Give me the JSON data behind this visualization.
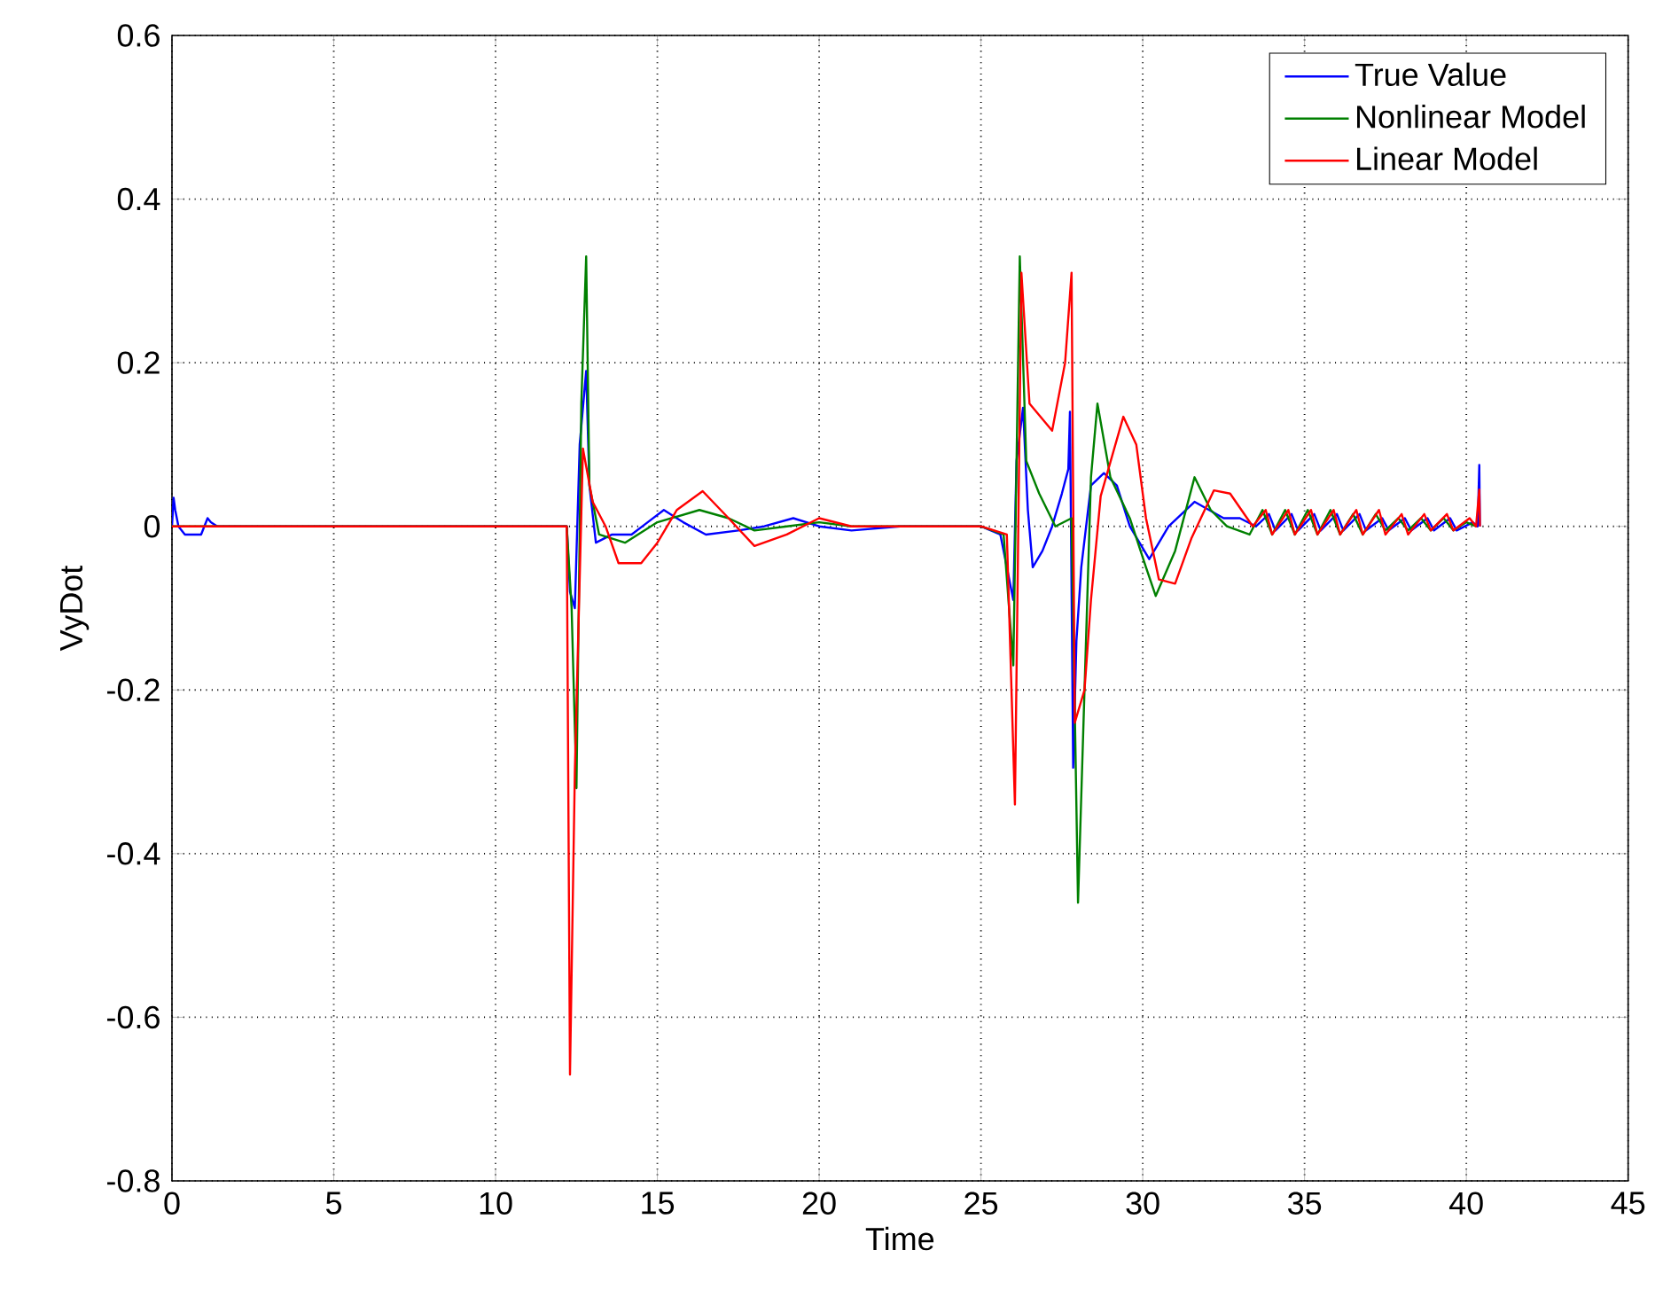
{
  "chart_data": {
    "type": "line",
    "xlabel": "Time",
    "ylabel": "VyDot",
    "xlim": [
      0,
      45
    ],
    "ylim": [
      -0.8,
      0.6
    ],
    "xticks": [
      0,
      5,
      10,
      15,
      20,
      25,
      30,
      35,
      40,
      45
    ],
    "yticks": [
      -0.8,
      -0.6,
      -0.4,
      -0.2,
      0,
      0.2,
      0.4,
      0.6
    ],
    "grid": true,
    "legend": "top right",
    "line_style": "solid",
    "series": [
      {
        "name": "True Value",
        "color": "#0000ff",
        "x": [
          0,
          0.05,
          0.1,
          0.2,
          0.4,
          0.6,
          0.9,
          1.1,
          1.2,
          1.4,
          1.6,
          3,
          12.2,
          12.3,
          12.45,
          12.6,
          12.8,
          12.9,
          13.1,
          13.6,
          14.2,
          14.7,
          15.2,
          15.8,
          16.5,
          17.5,
          18.3,
          19.2,
          20,
          21,
          22.5,
          24,
          25,
          25.6,
          26.0,
          26.1,
          26.3,
          26.45,
          26.6,
          26.9,
          27.2,
          27.5,
          27.7,
          27.75,
          27.85,
          27.95,
          28.1,
          28.4,
          28.8,
          29.2,
          29.6,
          30.2,
          30.8,
          31.6,
          32.5,
          33.0,
          33.5,
          33.9,
          34.1,
          34.6,
          34.8,
          35.3,
          35.5,
          36.0,
          36.2,
          36.7,
          36.9,
          37.4,
          37.6,
          38.1,
          38.3,
          38.8,
          39.0,
          39.5,
          39.7,
          40.2,
          40.35,
          40.4,
          40.42
        ],
        "values": [
          0,
          0.035,
          0.02,
          0,
          -0.01,
          -0.01,
          -0.01,
          0.01,
          0.005,
          0,
          0,
          0,
          0,
          -0.08,
          -0.1,
          0.1,
          0.19,
          0.05,
          -0.02,
          -0.01,
          -0.01,
          0.005,
          0.02,
          0.005,
          -0.01,
          -0.005,
          0,
          0.01,
          0,
          -0.005,
          0,
          0,
          0,
          -0.01,
          -0.09,
          0.08,
          0.145,
          0.02,
          -0.05,
          -0.03,
          0,
          0.04,
          0.07,
          0.14,
          -0.295,
          -0.14,
          -0.05,
          0.05,
          0.065,
          0.05,
          0,
          -0.04,
          0,
          0.03,
          0.01,
          0.01,
          0,
          0.015,
          -0.005,
          0.015,
          -0.005,
          0.015,
          -0.005,
          0.015,
          -0.005,
          0.015,
          -0.005,
          0.01,
          -0.005,
          0.01,
          -0.005,
          0.01,
          -0.005,
          0.01,
          -0.005,
          0.005,
          0,
          0.075,
          0
        ]
      },
      {
        "name": "Nonlinear Model",
        "color": "#008000",
        "x": [
          0,
          12.2,
          12.35,
          12.5,
          12.65,
          12.8,
          12.9,
          13.2,
          14,
          15,
          16.3,
          17.2,
          18,
          19,
          20,
          21,
          23,
          25,
          25.7,
          26.0,
          26.2,
          26.4,
          26.8,
          27.3,
          27.8,
          28.0,
          28.4,
          28.6,
          29.0,
          29.6,
          30.1,
          30.4,
          31.0,
          31.6,
          32.1,
          32.6,
          33.3,
          33.7,
          34.0,
          34.4,
          34.7,
          35.1,
          35.4,
          35.8,
          36.1,
          36.5,
          36.8,
          37.2,
          37.5,
          37.9,
          38.2,
          38.6,
          38.9,
          39.3,
          39.6,
          40.0,
          40.3
        ],
        "values": [
          0,
          0,
          -0.1,
          -0.32,
          0.15,
          0.33,
          0.05,
          -0.01,
          -0.02,
          0.005,
          0.02,
          0.01,
          -0.005,
          0,
          0.005,
          0,
          0,
          0,
          -0.01,
          -0.17,
          0.33,
          0.08,
          0.04,
          0,
          0.01,
          -0.46,
          0.06,
          0.15,
          0.06,
          0.01,
          -0.05,
          -0.085,
          -0.03,
          0.06,
          0.02,
          0,
          -0.01,
          0.02,
          -0.01,
          0.02,
          -0.01,
          0.02,
          -0.01,
          0.02,
          -0.01,
          0.015,
          -0.01,
          0.015,
          -0.005,
          0.01,
          -0.005,
          0.01,
          -0.005,
          0.01,
          -0.005,
          0.005,
          0
        ]
      },
      {
        "name": "Linear Model",
        "color": "#ff0000",
        "x": [
          0,
          12.2,
          12.3,
          12.45,
          12.7,
          13.0,
          13.4,
          13.8,
          14.5,
          15.0,
          15.6,
          16.4,
          17.2,
          18.0,
          19.0,
          20.0,
          21,
          23,
          25,
          25.8,
          26.05,
          26.25,
          26.5,
          27.2,
          27.6,
          27.8,
          27.9,
          28.2,
          28.4,
          28.7,
          29.4,
          29.8,
          30.1,
          30.5,
          31.0,
          31.5,
          32.2,
          32.7,
          33.4,
          33.8,
          34.0,
          34.5,
          34.7,
          35.2,
          35.4,
          35.9,
          36.1,
          36.6,
          36.8,
          37.3,
          37.5,
          38.0,
          38.2,
          38.7,
          38.9,
          39.4,
          39.6,
          40.1,
          40.3,
          40.4,
          40.42
        ],
        "values": [
          0,
          0,
          -0.67,
          -0.3,
          0.095,
          0.03,
          0,
          -0.045,
          -0.045,
          -0.02,
          0.02,
          0.043,
          0.01,
          -0.024,
          -0.01,
          0.01,
          0,
          0,
          0,
          -0.01,
          -0.34,
          0.31,
          0.15,
          0.117,
          0.2,
          0.31,
          -0.24,
          -0.2,
          -0.09,
          0.037,
          0.134,
          0.1,
          0.01,
          -0.065,
          -0.07,
          -0.015,
          0.044,
          0.04,
          0,
          0.02,
          -0.01,
          0.02,
          -0.01,
          0.02,
          -0.01,
          0.02,
          -0.01,
          0.02,
          -0.01,
          0.02,
          -0.01,
          0.015,
          -0.01,
          0.015,
          -0.005,
          0.015,
          -0.005,
          0.01,
          0,
          0.045,
          0
        ]
      }
    ]
  }
}
